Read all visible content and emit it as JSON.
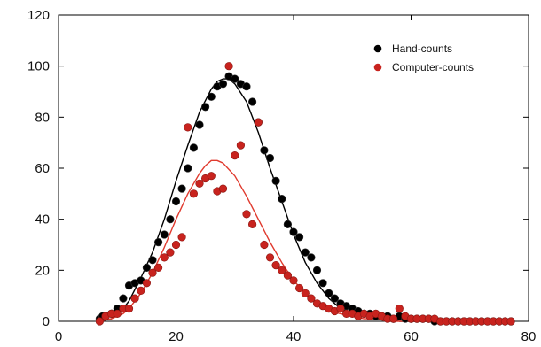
{
  "chart_data": {
    "type": "scatter",
    "title": "",
    "xlabel": "",
    "ylabel": "",
    "xlim": [
      0,
      80
    ],
    "ylim": [
      0,
      120
    ],
    "xticks": [
      0,
      20,
      40,
      60,
      80
    ],
    "yticks": [
      0,
      20,
      40,
      60,
      80,
      100,
      120
    ],
    "grid": false,
    "legend_position": "top-right",
    "colors": {
      "hand": "#000000",
      "computer": "#c8231e",
      "hand_fit": "#000000",
      "computer_fit": "#e03a2e"
    },
    "series": [
      {
        "name": "Hand-counts",
        "kind": "points",
        "color": "#000000",
        "points": [
          [
            7,
            1
          ],
          [
            7.5,
            2
          ],
          [
            8,
            2
          ],
          [
            9,
            3
          ],
          [
            10,
            5
          ],
          [
            11,
            9
          ],
          [
            12,
            14
          ],
          [
            13,
            15
          ],
          [
            14,
            16
          ],
          [
            15,
            21
          ],
          [
            16,
            24
          ],
          [
            17,
            31
          ],
          [
            18,
            34
          ],
          [
            19,
            40
          ],
          [
            20,
            47
          ],
          [
            21,
            52
          ],
          [
            22,
            60
          ],
          [
            23,
            68
          ],
          [
            24,
            77
          ],
          [
            25,
            84
          ],
          [
            26,
            88
          ],
          [
            27,
            92
          ],
          [
            28,
            93
          ],
          [
            29,
            96
          ],
          [
            30,
            95
          ],
          [
            31,
            93
          ],
          [
            32,
            92
          ],
          [
            33,
            86
          ],
          [
            34,
            78
          ],
          [
            35,
            67
          ],
          [
            36,
            64
          ],
          [
            37,
            55
          ],
          [
            38,
            48
          ],
          [
            39,
            38
          ],
          [
            40,
            35
          ],
          [
            41,
            33
          ],
          [
            42,
            27
          ],
          [
            43,
            25
          ],
          [
            44,
            20
          ],
          [
            45,
            15
          ],
          [
            46,
            11
          ],
          [
            47,
            9
          ],
          [
            48,
            7
          ],
          [
            49,
            6
          ],
          [
            50,
            5
          ],
          [
            51,
            4
          ],
          [
            52,
            3
          ],
          [
            53,
            3
          ],
          [
            54,
            2
          ],
          [
            55,
            2
          ],
          [
            56,
            2
          ],
          [
            57,
            1
          ],
          [
            58,
            2
          ],
          [
            59,
            1
          ],
          [
            60,
            1
          ],
          [
            61,
            1
          ],
          [
            62,
            1
          ],
          [
            63,
            1
          ],
          [
            64,
            0
          ],
          [
            65,
            0
          ],
          [
            66,
            0
          ],
          [
            67,
            0
          ],
          [
            68,
            0
          ],
          [
            69,
            0
          ],
          [
            70,
            0
          ],
          [
            71,
            0
          ],
          [
            72,
            0
          ],
          [
            73,
            0
          ],
          [
            74,
            0
          ],
          [
            75,
            0
          ],
          [
            76,
            0
          ],
          [
            77,
            0
          ]
        ]
      },
      {
        "name": "Computer-counts",
        "kind": "points",
        "color": "#c8231e",
        "points": [
          [
            7,
            0
          ],
          [
            8,
            2
          ],
          [
            9,
            3
          ],
          [
            10,
            3
          ],
          [
            11,
            5
          ],
          [
            12,
            5
          ],
          [
            13,
            9
          ],
          [
            14,
            12
          ],
          [
            15,
            15
          ],
          [
            16,
            19
          ],
          [
            17,
            21
          ],
          [
            18,
            25
          ],
          [
            19,
            27
          ],
          [
            20,
            30
          ],
          [
            21,
            33
          ],
          [
            22,
            76
          ],
          [
            23,
            50
          ],
          [
            24,
            54
          ],
          [
            25,
            56
          ],
          [
            26,
            57
          ],
          [
            27,
            51
          ],
          [
            28,
            52
          ],
          [
            29,
            100
          ],
          [
            30,
            65
          ],
          [
            31,
            69
          ],
          [
            32,
            42
          ],
          [
            33,
            38
          ],
          [
            34,
            78
          ],
          [
            35,
            30
          ],
          [
            36,
            25
          ],
          [
            37,
            22
          ],
          [
            38,
            20
          ],
          [
            39,
            18
          ],
          [
            40,
            16
          ],
          [
            41,
            13
          ],
          [
            42,
            11
          ],
          [
            43,
            9
          ],
          [
            44,
            7
          ],
          [
            45,
            6
          ],
          [
            46,
            5
          ],
          [
            47,
            4
          ],
          [
            48,
            5
          ],
          [
            49,
            3
          ],
          [
            50,
            3
          ],
          [
            51,
            2
          ],
          [
            52,
            3
          ],
          [
            53,
            2
          ],
          [
            54,
            3
          ],
          [
            55,
            2
          ],
          [
            56,
            1
          ],
          [
            57,
            1
          ],
          [
            58,
            5
          ],
          [
            59,
            2
          ],
          [
            60,
            1
          ],
          [
            61,
            1
          ],
          [
            62,
            1
          ],
          [
            63,
            1
          ],
          [
            64,
            1
          ],
          [
            65,
            0
          ],
          [
            66,
            0
          ],
          [
            67,
            0
          ],
          [
            68,
            0
          ],
          [
            69,
            0
          ],
          [
            70,
            0
          ],
          [
            71,
            0
          ],
          [
            72,
            0
          ],
          [
            73,
            0
          ],
          [
            74,
            0
          ],
          [
            75,
            0
          ],
          [
            76,
            0
          ],
          [
            77,
            0
          ]
        ]
      },
      {
        "name": "",
        "kind": "fit",
        "color": "#000000",
        "points": [
          [
            7,
            0
          ],
          [
            9,
            1
          ],
          [
            10,
            3
          ],
          [
            11,
            5
          ],
          [
            12,
            8
          ],
          [
            14,
            17
          ],
          [
            16,
            27
          ],
          [
            18,
            40
          ],
          [
            20,
            55
          ],
          [
            22,
            69
          ],
          [
            24,
            82
          ],
          [
            26,
            91
          ],
          [
            27,
            94
          ],
          [
            28,
            95
          ],
          [
            29,
            95
          ],
          [
            30,
            93
          ],
          [
            32,
            86
          ],
          [
            34,
            74
          ],
          [
            36,
            60
          ],
          [
            38,
            47
          ],
          [
            40,
            34
          ],
          [
            42,
            23
          ],
          [
            44,
            15
          ],
          [
            46,
            9
          ],
          [
            48,
            5
          ],
          [
            50,
            3
          ],
          [
            52,
            2
          ],
          [
            54,
            1
          ],
          [
            56,
            1
          ],
          [
            58,
            0
          ],
          [
            60,
            0
          ],
          [
            65,
            0
          ],
          [
            70,
            0
          ],
          [
            77,
            0
          ]
        ]
      },
      {
        "name": "",
        "kind": "fit",
        "color": "#e03a2e",
        "points": [
          [
            7,
            0
          ],
          [
            9,
            1
          ],
          [
            10,
            2
          ],
          [
            11,
            3
          ],
          [
            12,
            5
          ],
          [
            14,
            11
          ],
          [
            16,
            19
          ],
          [
            18,
            29
          ],
          [
            20,
            40
          ],
          [
            22,
            50
          ],
          [
            24,
            58
          ],
          [
            25,
            61
          ],
          [
            26,
            63
          ],
          [
            27,
            63
          ],
          [
            28,
            62
          ],
          [
            30,
            57
          ],
          [
            32,
            49
          ],
          [
            34,
            40
          ],
          [
            36,
            31
          ],
          [
            38,
            23
          ],
          [
            40,
            16
          ],
          [
            42,
            11
          ],
          [
            44,
            7
          ],
          [
            46,
            4
          ],
          [
            48,
            3
          ],
          [
            50,
            2
          ],
          [
            52,
            1
          ],
          [
            54,
            1
          ],
          [
            56,
            0
          ],
          [
            60,
            0
          ],
          [
            65,
            0
          ],
          [
            70,
            0
          ],
          [
            77,
            0
          ]
        ]
      }
    ]
  }
}
